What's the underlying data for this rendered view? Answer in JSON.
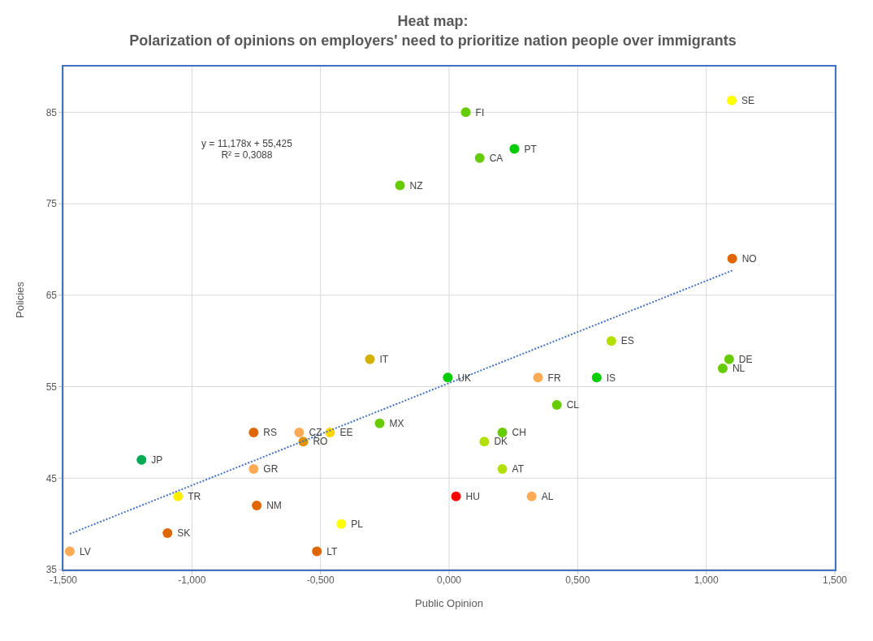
{
  "chart_data": {
    "type": "scatter",
    "title": "Heat map:",
    "subtitle": "Polarization of opinions on employers' need to prioritize nation people over immigrants",
    "xlabel": "Public Opinion",
    "ylabel": "Policies",
    "xlim": [
      -1.5,
      1.5
    ],
    "ylim": [
      35,
      90
    ],
    "xticks": [
      {
        "value": -1.5,
        "label": "-1,500"
      },
      {
        "value": -1,
        "label": "-1,000"
      },
      {
        "value": -0.5,
        "label": "-0,500"
      },
      {
        "value": 0,
        "label": "0,000"
      },
      {
        "value": 0.5,
        "label": "0,500"
      },
      {
        "value": 1,
        "label": "1,000"
      },
      {
        "value": 1.5,
        "label": "1,500"
      }
    ],
    "yticks": [
      35,
      45,
      55,
      65,
      75,
      85
    ],
    "grid": true,
    "legend": false,
    "series": [
      {
        "marker": "circle",
        "x": [
          0.065,
          1.099,
          0.254,
          0.119,
          -0.191,
          1.101,
          0.631,
          1.089,
          1.064,
          -0.308,
          -0.005,
          0.346,
          0.574,
          0.419,
          -0.27,
          0.207,
          0.137,
          -0.583,
          -0.76,
          -0.463,
          -0.567,
          -1.196,
          -0.76,
          0.207,
          -1.054,
          0.027,
          0.321,
          -0.748,
          -0.419,
          -1.095,
          -1.475,
          -0.514
        ],
        "values": [
          85,
          86.3,
          81,
          80,
          77,
          69,
          60,
          58,
          57,
          58,
          56,
          56,
          56,
          53,
          51,
          50,
          49,
          50,
          50,
          50,
          49,
          47,
          46,
          46,
          43,
          43,
          43,
          42,
          40,
          39,
          37,
          37
        ],
        "colors": [
          "#66cc00",
          "#ffff00",
          "#00cc00",
          "#66cc00",
          "#66cc00",
          "#e06600",
          "#b3e000",
          "#66cc00",
          "#66cc00",
          "#d4b000",
          "#00cc00",
          "#ffaa55",
          "#00cc00",
          "#66cc00",
          "#66cc00",
          "#66cc00",
          "#b3e000",
          "#ffaa55",
          "#e06600",
          "#ffd700",
          "#e09000",
          "#00aa55",
          "#ffaa55",
          "#b3e000",
          "#ffee00",
          "#ff0000",
          "#ffaa55",
          "#e06600",
          "#ffff00",
          "#e06600",
          "#ffaa55",
          "#e06600"
        ]
      },
      {
        "type": "line",
        "x": [
          -1.475,
          1.101
        ],
        "values": [
          38.9,
          67.7
        ],
        "color": "#4472c4",
        "line_style": "dotted",
        "marker": "none"
      }
    ],
    "annotations": [
      "y = 11,178x + 55,425",
      "R² = 0,3088",
      {
        "text": "FI",
        "x": 0.065,
        "y": 85
      },
      {
        "text": "SE",
        "x": 1.099,
        "y": 86.3
      },
      {
        "text": "PT",
        "x": 0.254,
        "y": 81
      },
      {
        "text": "CA",
        "x": 0.119,
        "y": 80
      },
      {
        "text": "NZ",
        "x": -0.191,
        "y": 77
      },
      {
        "text": "NO",
        "x": 1.101,
        "y": 69
      },
      {
        "text": "ES",
        "x": 0.631,
        "y": 60
      },
      {
        "text": "DE",
        "x": 1.089,
        "y": 58
      },
      {
        "text": "NL",
        "x": 1.064,
        "y": 57
      },
      {
        "text": "IT",
        "x": -0.308,
        "y": 58
      },
      {
        "text": "UK",
        "x": -0.005,
        "y": 56
      },
      {
        "text": "FR",
        "x": 0.346,
        "y": 56
      },
      {
        "text": "IS",
        "x": 0.574,
        "y": 56
      },
      {
        "text": "CL",
        "x": 0.419,
        "y": 53
      },
      {
        "text": "MX",
        "x": -0.27,
        "y": 51
      },
      {
        "text": "CH",
        "x": 0.207,
        "y": 50
      },
      {
        "text": "DK",
        "x": 0.137,
        "y": 49
      },
      {
        "text": "CZ",
        "x": -0.583,
        "y": 50
      },
      {
        "text": "RS",
        "x": -0.76,
        "y": 50
      },
      {
        "text": "EE",
        "x": -0.463,
        "y": 50
      },
      {
        "text": "RO",
        "x": -0.567,
        "y": 49
      },
      {
        "text": "JP",
        "x": -1.196,
        "y": 47
      },
      {
        "text": "GR",
        "x": -0.76,
        "y": 46
      },
      {
        "text": "AT",
        "x": 0.207,
        "y": 46
      },
      {
        "text": "TR",
        "x": -1.054,
        "y": 43
      },
      {
        "text": "HU",
        "x": 0.027,
        "y": 43
      },
      {
        "text": "AL",
        "x": 0.321,
        "y": 43
      },
      {
        "text": "NM",
        "x": -0.748,
        "y": 42
      },
      {
        "text": "PL",
        "x": -0.419,
        "y": 40
      },
      {
        "text": "SK",
        "x": -1.095,
        "y": 39
      },
      {
        "text": "LV",
        "x": -1.475,
        "y": 37
      },
      {
        "text": "LT",
        "x": -0.514,
        "y": 37
      }
    ]
  }
}
